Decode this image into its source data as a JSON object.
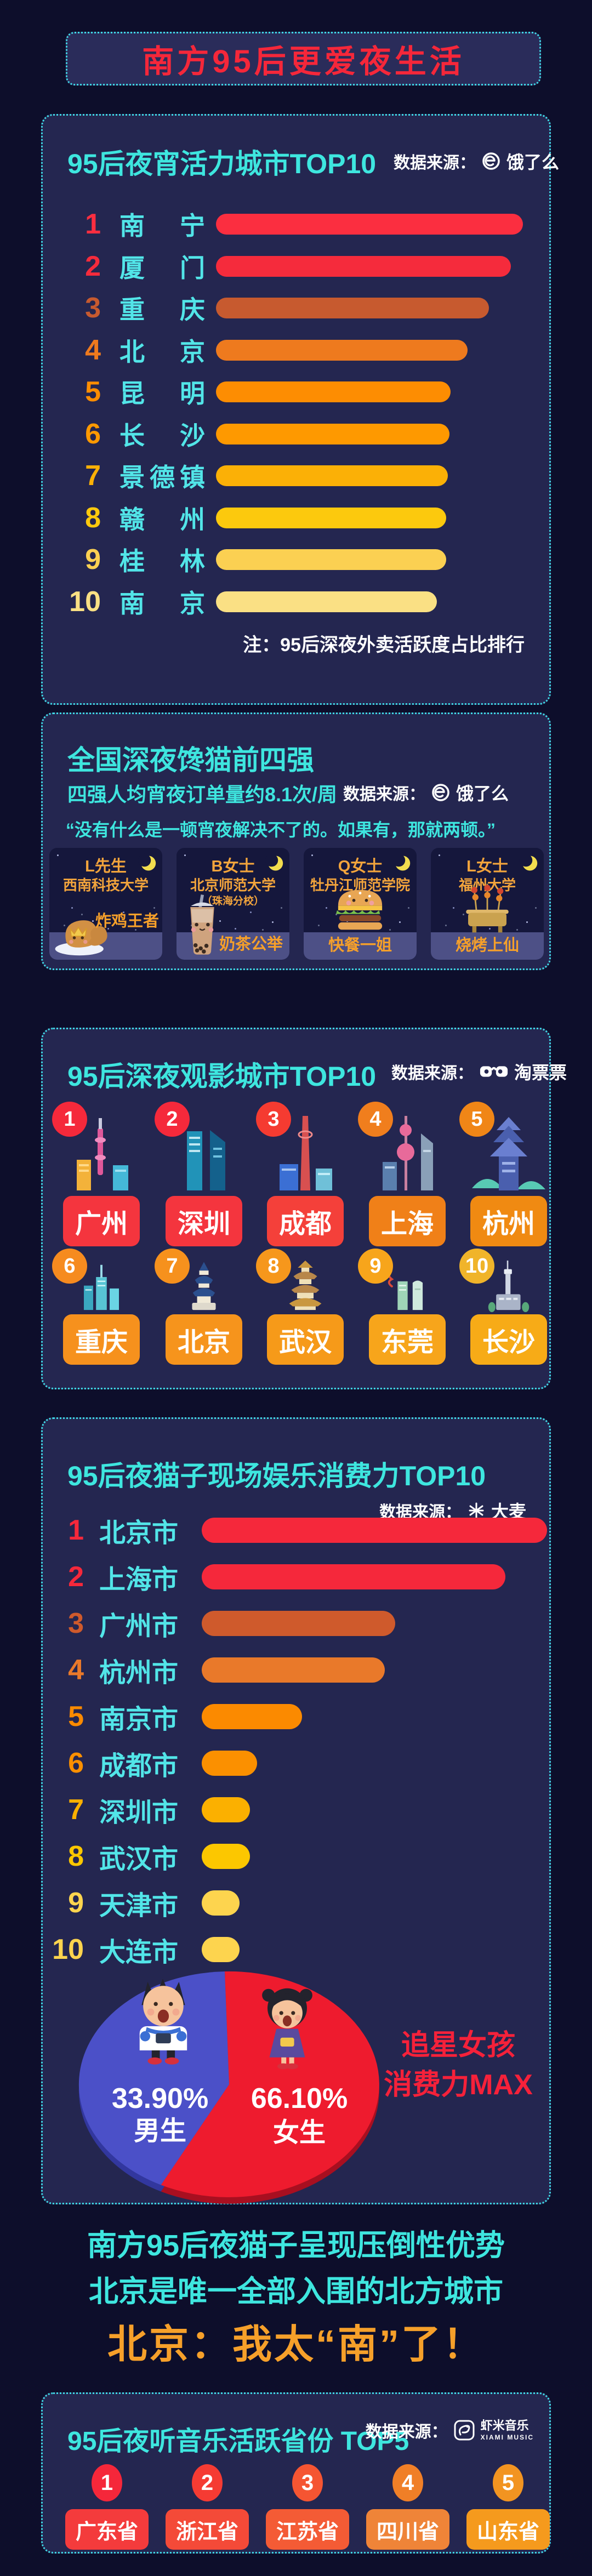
{
  "page": {
    "bg": "#0d0e2b",
    "panel_bg": "#242650",
    "border_color": "#3fd9e6",
    "accent_cyan": "#3ee6df",
    "accent_red": "#f5273a",
    "accent_orange": "#f6a02a"
  },
  "banner": {
    "title": "南方95后更爱夜生活"
  },
  "source_label": "数据来源：",
  "supper": {
    "title": "95后夜宵活力城市TOP10",
    "source": "饿了么",
    "source_icon": "eleme-icon",
    "note": "注：95后深夜外卖活跃度占比排行"
  },
  "gluttons": {
    "title": "全国深夜馋猫前四强",
    "subtitle": "四强人均宵夜订单量约8.1次/周",
    "source": "饿了么",
    "source_icon": "eleme-icon",
    "quote": "“没有什么是一顿宵夜解决不了的。如果有，那就两顿。”",
    "cards": [
      {
        "person": "L先生",
        "school": "西南科技大学",
        "school_note": "",
        "food_title": "炸鸡王者",
        "icon": "fried-chicken-icon"
      },
      {
        "person": "B女士",
        "school": "北京师范大学",
        "school_note": "（珠海分校）",
        "food_title": "奶茶公举",
        "icon": "bubble-tea-icon"
      },
      {
        "person": "Q女士",
        "school": "牡丹江师范学院",
        "school_note": "",
        "food_title": "快餐一姐",
        "icon": "burger-icon"
      },
      {
        "person": "L女士",
        "school": "福州大学",
        "school_note": "",
        "food_title": "烧烤上仙",
        "icon": "bbq-icon"
      }
    ]
  },
  "movies": {
    "title": "95后深夜观影城市TOP10",
    "source": "淘票票",
    "source_icon": "taopiaopiao-icon",
    "cities": [
      {
        "rank": "1",
        "name": "广州",
        "circle_color": "#f5293b",
        "plate_color": "#f4353e",
        "icon": "guangzhou-skyline-icon"
      },
      {
        "rank": "2",
        "name": "深圳",
        "circle_color": "#f5293b",
        "plate_color": "#f4353e",
        "icon": "shenzhen-skyline-icon"
      },
      {
        "rank": "3",
        "name": "成都",
        "circle_color": "#f53b31",
        "plate_color": "#f4403a",
        "icon": "chengdu-skyline-icon"
      },
      {
        "rank": "4",
        "name": "上海",
        "circle_color": "#f07e1d",
        "plate_color": "#f08018",
        "icon": "shanghai-skyline-icon"
      },
      {
        "rank": "5",
        "name": "杭州",
        "circle_color": "#f08617",
        "plate_color": "#f08a12",
        "icon": "hangzhou-skyline-icon"
      },
      {
        "rank": "6",
        "name": "重庆",
        "circle_color": "#f68b1f",
        "plate_color": "#f6911d",
        "icon": "chongqing-skyline-icon"
      },
      {
        "rank": "7",
        "name": "北京",
        "circle_color": "#f6911d",
        "plate_color": "#f6941c",
        "icon": "beijing-skyline-icon"
      },
      {
        "rank": "8",
        "name": "武汉",
        "circle_color": "#f6971c",
        "plate_color": "#f69a19",
        "icon": "wuhan-skyline-icon"
      },
      {
        "rank": "9",
        "name": "东莞",
        "circle_color": "#f7a51b",
        "plate_color": "#f7a51b",
        "icon": "dongguan-skyline-icon"
      },
      {
        "rank": "10",
        "name": "长沙",
        "circle_color": "#f0b42a",
        "plate_color": "#f7ab17",
        "icon": "changsha-skyline-icon"
      }
    ]
  },
  "live": {
    "title": "95后夜猫子现场娱乐消费力TOP10",
    "source": "大麦",
    "source_icon": "damai-icon",
    "caption_line1": "追星女孩",
    "caption_line2": "消费力MAX"
  },
  "statement": {
    "line1": "南方95后夜猫子呈现压倒性优势",
    "line2": "北京是唯一全部入围的北方城市",
    "punch": "北京：我太“南”了！"
  },
  "music": {
    "title": "95后夜听音乐活跃省份 TOP5",
    "source": "虾米音乐",
    "source_sub": "XIAMI MUSIC",
    "source_icon": "xiami-icon",
    "provinces": [
      {
        "rank": "1",
        "name": "广东省",
        "circle_color": "#f5273a",
        "plate_color": "#f43b3c"
      },
      {
        "rank": "2",
        "name": "浙江省",
        "circle_color": "#f53b33",
        "plate_color": "#f44a38"
      },
      {
        "rank": "3",
        "name": "江苏省",
        "circle_color": "#f55532",
        "plate_color": "#f45b35"
      },
      {
        "rank": "4",
        "name": "四川省",
        "circle_color": "#f07f27",
        "plate_color": "#ef8438"
      },
      {
        "rank": "5",
        "name": "山东省",
        "circle_color": "#f29421",
        "plate_color": "#f59a1d"
      }
    ]
  },
  "chart_data": [
    {
      "id": "supper-activity-cities",
      "type": "bar",
      "orientation": "horizontal",
      "title": "95后夜宵活力城市TOP10",
      "source": "饿了么",
      "note": "注：95后深夜外卖活跃度占比排行",
      "value_note": "no numeric axis shown; bar lengths indicate relative late-night delivery activity share, ranked",
      "categories": [
        "南宁",
        "厦门",
        "重庆",
        "北京",
        "昆明",
        "长沙",
        "景德镇",
        "赣州",
        "桂林",
        "南京"
      ],
      "values_pct_of_max": [
        100,
        96,
        89,
        82,
        76.5,
        76,
        75.5,
        75,
        75,
        72
      ],
      "bar_colors": [
        "#fb2e40",
        "#f52b3c",
        "#c75a2f",
        "#ee7a1e",
        "#fd8d02",
        "#fe9900",
        "#fbb006",
        "#fcc90d",
        "#fbd052",
        "#fae084"
      ]
    },
    {
      "id": "live-entertainment-spending-cities",
      "type": "bar",
      "orientation": "horizontal",
      "title": "95后夜猫子现场娱乐消费力TOP10",
      "source": "大麦",
      "value_note": "no numeric axis shown; bar lengths indicate relative live-entertainment spending power, ranked",
      "categories": [
        "北京市",
        "上海市",
        "广州市",
        "杭州市",
        "南京市",
        "成都市",
        "深圳市",
        "武汉市",
        "天津市",
        "大连市"
      ],
      "values_pct_of_max": [
        100,
        88,
        56,
        53,
        29,
        16,
        14,
        14,
        11,
        11
      ],
      "bar_colors": [
        "#f5283b",
        "#f5283b",
        "#cf5a2c",
        "#e9792a",
        "#fb8a00",
        "#fb9000",
        "#fbb000",
        "#fcc700",
        "#fdd44e",
        "#fdd44e"
      ]
    },
    {
      "id": "live-entertainment-gender-split",
      "type": "pie",
      "title": "95后夜猫子现场娱乐消费力 男女比例",
      "slices": [
        {
          "label": "男生",
          "value": 33.9,
          "display": "33.90%",
          "color": "#4b50c8"
        },
        {
          "label": "女生",
          "value": 66.1,
          "display": "66.10%",
          "color": "#ee1b2e"
        }
      ],
      "annotation": "追星女孩消费力MAX"
    }
  ]
}
